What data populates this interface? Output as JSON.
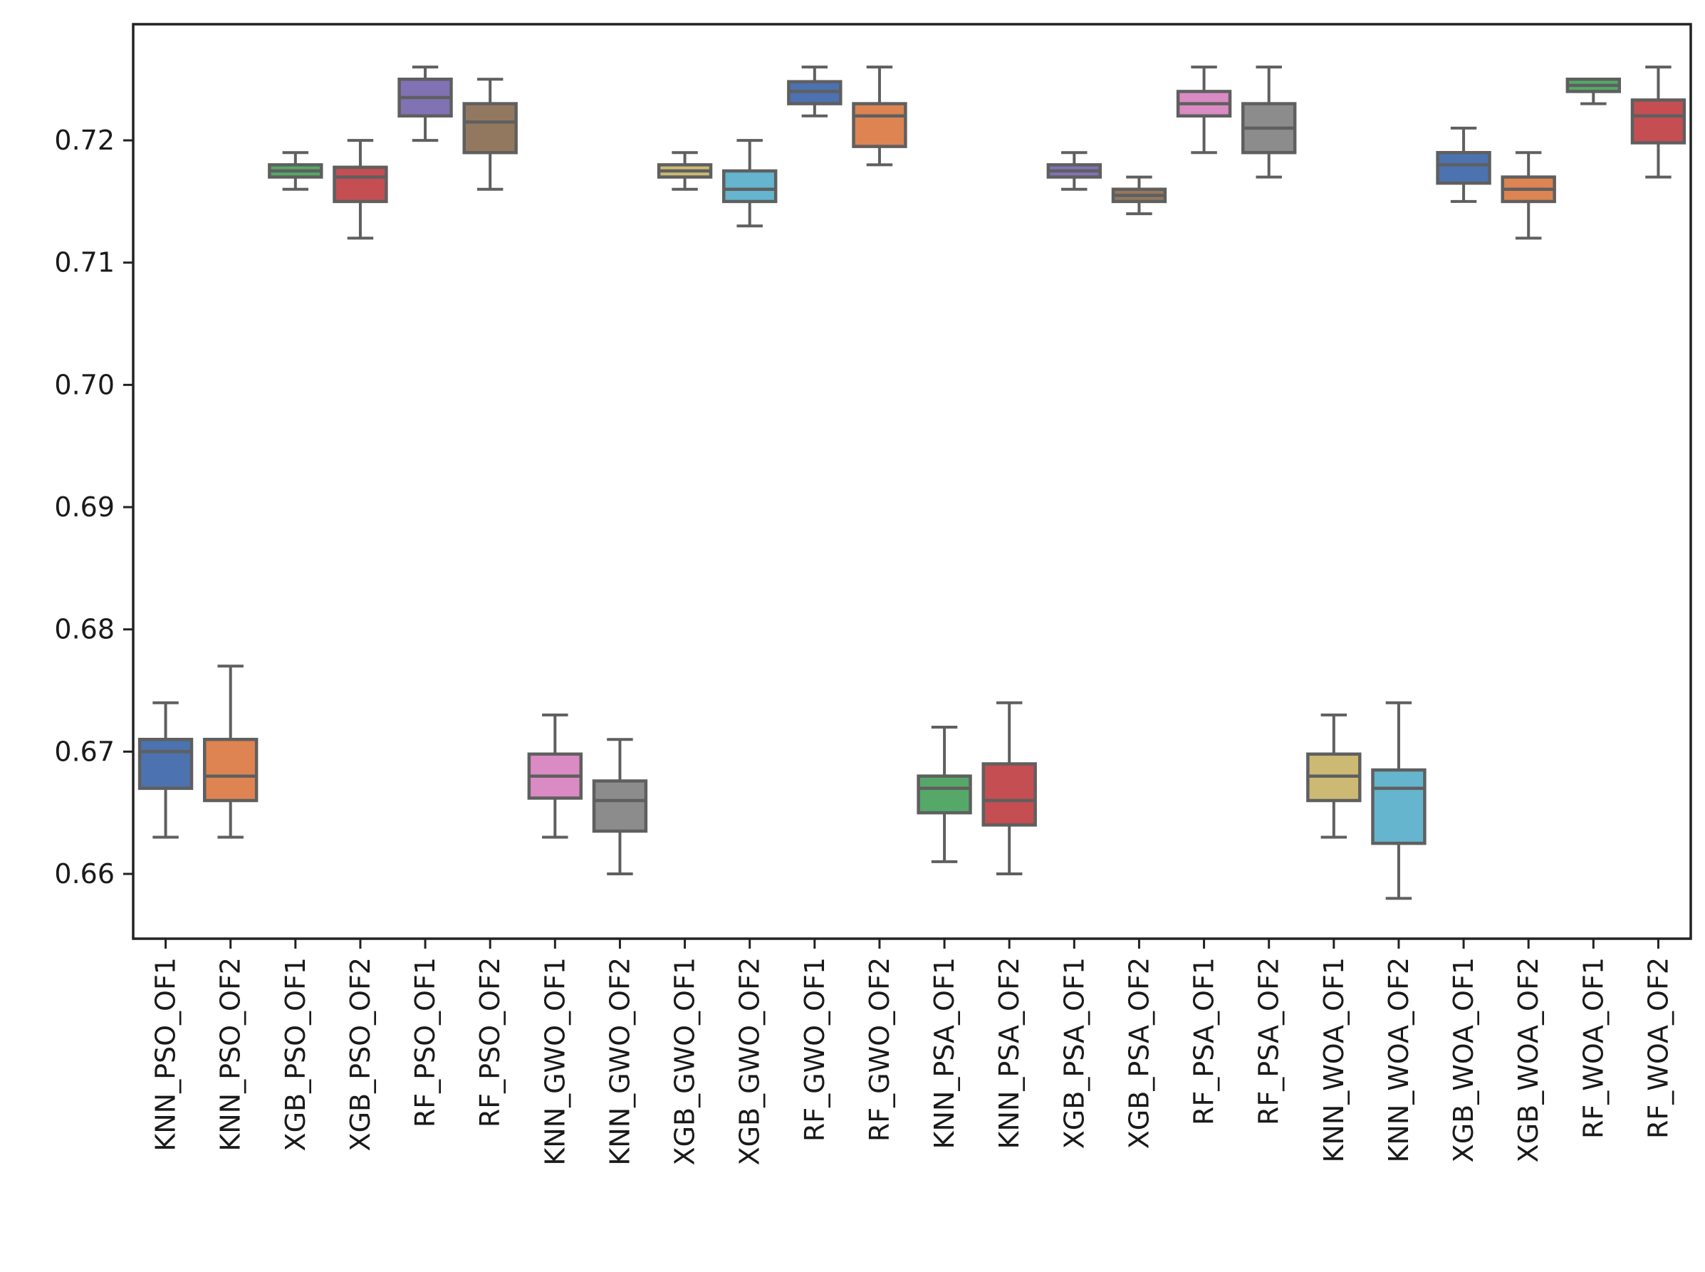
{
  "chart_data": {
    "type": "box",
    "title": "",
    "xlabel": "",
    "ylabel": "",
    "ylim": [
      0.6547,
      0.7295
    ],
    "yticks": [
      "0.66",
      "0.67",
      "0.68",
      "0.69",
      "0.70",
      "0.71",
      "0.72"
    ],
    "grid": false,
    "categories": [
      "KNN_PSO_OF1",
      "KNN_PSO_OF2",
      "XGB_PSO_OF1",
      "XGB_PSO_OF2",
      "RF_PSO_OF1",
      "RF_PSO_OF2",
      "KNN_GWO_OF1",
      "KNN_GWO_OF2",
      "XGB_GWO_OF1",
      "XGB_GWO_OF2",
      "RF_GWO_OF1",
      "RF_GWO_OF2",
      "KNN_PSA_OF1",
      "KNN_PSA_OF2",
      "XGB_PSA_OF1",
      "XGB_PSA_OF2",
      "RF_PSA_OF1",
      "RF_PSA_OF2",
      "KNN_WOA_OF1",
      "KNN_WOA_OF2",
      "XGB_WOA_OF1",
      "XGB_WOA_OF2",
      "RF_WOA_OF1",
      "RF_WOA_OF2"
    ],
    "boxes": [
      {
        "whislo": 0.663,
        "q1": 0.667,
        "med": 0.67,
        "q3": 0.671,
        "whishi": 0.674,
        "color": "#4c72b0"
      },
      {
        "whislo": 0.663,
        "q1": 0.666,
        "med": 0.668,
        "q3": 0.671,
        "whishi": 0.677,
        "color": "#dd8452"
      },
      {
        "whislo": 0.716,
        "q1": 0.717,
        "med": 0.7175,
        "q3": 0.718,
        "whishi": 0.719,
        "color": "#55a868"
      },
      {
        "whislo": 0.712,
        "q1": 0.715,
        "med": 0.717,
        "q3": 0.7178,
        "whishi": 0.72,
        "color": "#c44e52"
      },
      {
        "whislo": 0.72,
        "q1": 0.722,
        "med": 0.7235,
        "q3": 0.725,
        "whishi": 0.726,
        "color": "#8172b3"
      },
      {
        "whislo": 0.716,
        "q1": 0.719,
        "med": 0.7215,
        "q3": 0.723,
        "whishi": 0.725,
        "color": "#937860"
      },
      {
        "whislo": 0.663,
        "q1": 0.6662,
        "med": 0.668,
        "q3": 0.6698,
        "whishi": 0.673,
        "color": "#da8bc3"
      },
      {
        "whislo": 0.66,
        "q1": 0.6635,
        "med": 0.666,
        "q3": 0.6676,
        "whishi": 0.671,
        "color": "#8c8c8c"
      },
      {
        "whislo": 0.716,
        "q1": 0.717,
        "med": 0.7175,
        "q3": 0.718,
        "whishi": 0.719,
        "color": "#ccb974"
      },
      {
        "whislo": 0.713,
        "q1": 0.715,
        "med": 0.716,
        "q3": 0.7175,
        "whishi": 0.72,
        "color": "#64b5cd"
      },
      {
        "whislo": 0.722,
        "q1": 0.723,
        "med": 0.724,
        "q3": 0.7248,
        "whishi": 0.726,
        "color": "#4c72b0"
      },
      {
        "whislo": 0.718,
        "q1": 0.7195,
        "med": 0.722,
        "q3": 0.723,
        "whishi": 0.726,
        "color": "#dd8452"
      },
      {
        "whislo": 0.661,
        "q1": 0.665,
        "med": 0.667,
        "q3": 0.668,
        "whishi": 0.672,
        "color": "#55a868"
      },
      {
        "whislo": 0.66,
        "q1": 0.664,
        "med": 0.666,
        "q3": 0.669,
        "whishi": 0.674,
        "color": "#c44e52"
      },
      {
        "whislo": 0.716,
        "q1": 0.717,
        "med": 0.7175,
        "q3": 0.718,
        "whishi": 0.719,
        "color": "#8172b3"
      },
      {
        "whislo": 0.714,
        "q1": 0.715,
        "med": 0.7155,
        "q3": 0.716,
        "whishi": 0.717,
        "color": "#937860"
      },
      {
        "whislo": 0.719,
        "q1": 0.722,
        "med": 0.723,
        "q3": 0.724,
        "whishi": 0.726,
        "color": "#da8bc3"
      },
      {
        "whislo": 0.717,
        "q1": 0.719,
        "med": 0.721,
        "q3": 0.723,
        "whishi": 0.726,
        "color": "#8c8c8c"
      },
      {
        "whislo": 0.663,
        "q1": 0.666,
        "med": 0.668,
        "q3": 0.6698,
        "whishi": 0.673,
        "color": "#ccb974"
      },
      {
        "whislo": 0.658,
        "q1": 0.6625,
        "med": 0.667,
        "q3": 0.6685,
        "whishi": 0.674,
        "color": "#64b5cd"
      },
      {
        "whislo": 0.715,
        "q1": 0.7165,
        "med": 0.718,
        "q3": 0.719,
        "whishi": 0.721,
        "color": "#4c72b0"
      },
      {
        "whislo": 0.712,
        "q1": 0.715,
        "med": 0.716,
        "q3": 0.717,
        "whishi": 0.719,
        "color": "#dd8452"
      },
      {
        "whislo": 0.723,
        "q1": 0.724,
        "med": 0.7245,
        "q3": 0.725,
        "whishi": 0.725,
        "color": "#55a868"
      },
      {
        "whislo": 0.717,
        "q1": 0.7198,
        "med": 0.722,
        "q3": 0.7233,
        "whishi": 0.726,
        "color": "#c44e52"
      }
    ]
  }
}
